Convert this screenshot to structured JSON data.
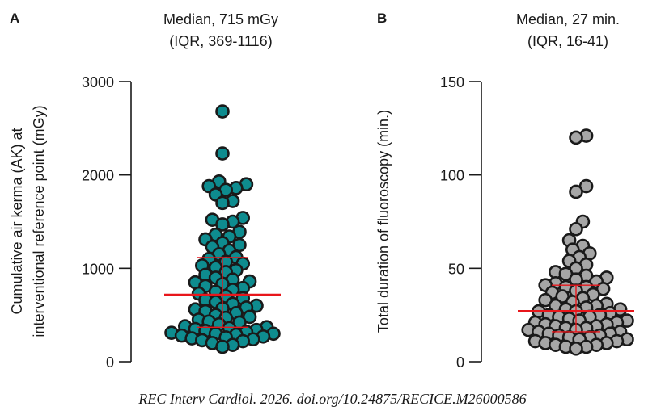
{
  "caption": "REC Interv Cardiol. 2026. doi.org/10.24875/RECICE.M26000586",
  "chart_data": [
    {
      "type": "scatter",
      "subtype": "dot-plot (beeswarm) with median and IQR lines",
      "panel": "A",
      "title_line1": "Median, 715 mGy",
      "title_line2": "(IQR, 369-1116)",
      "ylabel_line1": "Cumulative air kerma (AK) at",
      "ylabel_line2": "interventional reference point (mGy)",
      "ylim": [
        0,
        3000
      ],
      "yticks": [
        0,
        1000,
        2000,
        3000
      ],
      "ytick_labels": [
        "0",
        "1000",
        "2000",
        "3000"
      ],
      "grid": false,
      "marker_color": "#0e8c8f",
      "marker_edge_color": "#1a1a1a",
      "median": 715,
      "iqr": [
        369,
        1116
      ],
      "stat_color": "#e8161b",
      "values": [
        2680,
        2230,
        1930,
        1900,
        1880,
        1860,
        1840,
        1790,
        1720,
        1700,
        1540,
        1520,
        1500,
        1470,
        1390,
        1360,
        1340,
        1310,
        1270,
        1250,
        1230,
        1190,
        1150,
        1120,
        1100,
        1070,
        1050,
        1030,
        1010,
        980,
        960,
        930,
        900,
        880,
        860,
        850,
        830,
        810,
        790,
        770,
        750,
        730,
        700,
        680,
        660,
        640,
        620,
        600,
        580,
        570,
        560,
        540,
        520,
        500,
        480,
        470,
        450,
        430,
        420,
        400,
        380,
        370,
        360,
        350,
        340,
        330,
        320,
        310,
        300,
        300,
        290,
        280,
        270,
        260,
        250,
        240,
        230,
        220,
        200,
        180,
        160
      ]
    },
    {
      "type": "scatter",
      "subtype": "dot-plot (beeswarm) with median and IQR lines",
      "panel": "B",
      "title_line1": "Median, 27 min.",
      "title_line2": "(IQR, 16-41)",
      "ylabel": "Total duration of fluoroscopy (min.)",
      "ylim": [
        0,
        150
      ],
      "yticks": [
        0,
        50,
        100,
        150
      ],
      "ytick_labels": [
        "0",
        "50",
        "100",
        "150"
      ],
      "grid": false,
      "marker_color": "#a6a6a6",
      "marker_edge_color": "#1a1a1a",
      "median": 27,
      "iqr": [
        16,
        41
      ],
      "stat_color": "#e8161b",
      "values": [
        121,
        120,
        94,
        91,
        75,
        71,
        65,
        62,
        60,
        58,
        56,
        54,
        52,
        50,
        48,
        47,
        46,
        45,
        44,
        43,
        42,
        41,
        40,
        40,
        39,
        38,
        37,
        36,
        35,
        34,
        33,
        32,
        31,
        30,
        30,
        29,
        28,
        28,
        27,
        27,
        26,
        25,
        25,
        24,
        24,
        23,
        22,
        22,
        21,
        21,
        20,
        20,
        19,
        19,
        18,
        18,
        17,
        17,
        16,
        16,
        15,
        15,
        14,
        14,
        13,
        13,
        12,
        12,
        11,
        11,
        10,
        10,
        9,
        9,
        8,
        8,
        7
      ]
    }
  ]
}
